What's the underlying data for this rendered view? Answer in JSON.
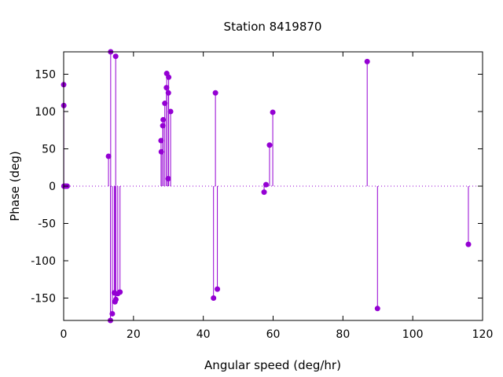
{
  "chart_data": {
    "type": "stem",
    "title": "Station 8419870",
    "xlabel": "Angular speed (deg/hr)",
    "ylabel": "Phase (deg)",
    "xlim": [
      0,
      120
    ],
    "ylim": [
      -180,
      180
    ],
    "xticks": [
      0,
      20,
      40,
      60,
      80,
      100,
      120
    ],
    "yticks": [
      -150,
      -100,
      -50,
      0,
      50,
      100,
      150
    ],
    "grid": false,
    "zero_line": "dotted",
    "series": [
      {
        "color": "#9400d3",
        "points": [
          {
            "x": 0.0,
            "y": 136
          },
          {
            "x": 0.04,
            "y": 108
          },
          {
            "x": 0.08,
            "y": 0
          },
          {
            "x": 0.5,
            "y": 0
          },
          {
            "x": 1.0,
            "y": 0
          },
          {
            "x": 12.85,
            "y": 40
          },
          {
            "x": 13.4,
            "y": -180
          },
          {
            "x": 13.47,
            "y": 180
          },
          {
            "x": 13.94,
            "y": -171
          },
          {
            "x": 14.5,
            "y": -143
          },
          {
            "x": 14.7,
            "y": -155
          },
          {
            "x": 14.9,
            "y": 174
          },
          {
            "x": 14.96,
            "y": -152
          },
          {
            "x": 15.5,
            "y": -144
          },
          {
            "x": 16.14,
            "y": -142
          },
          {
            "x": 27.9,
            "y": 61
          },
          {
            "x": 27.97,
            "y": 46
          },
          {
            "x": 28.4,
            "y": 81
          },
          {
            "x": 28.51,
            "y": 89
          },
          {
            "x": 28.98,
            "y": 111
          },
          {
            "x": 29.46,
            "y": 132
          },
          {
            "x": 29.53,
            "y": 151
          },
          {
            "x": 29.96,
            "y": 10
          },
          {
            "x": 30.0,
            "y": 125
          },
          {
            "x": 30.08,
            "y": 146
          },
          {
            "x": 30.63,
            "y": 100
          },
          {
            "x": 42.93,
            "y": -150
          },
          {
            "x": 43.48,
            "y": 125
          },
          {
            "x": 44.03,
            "y": -138
          },
          {
            "x": 57.42,
            "y": -8
          },
          {
            "x": 57.97,
            "y": 2
          },
          {
            "x": 58.98,
            "y": 55
          },
          {
            "x": 59.9,
            "y": 99
          },
          {
            "x": 86.95,
            "y": 167
          },
          {
            "x": 89.9,
            "y": -164
          },
          {
            "x": 115.94,
            "y": -78
          }
        ]
      }
    ]
  }
}
